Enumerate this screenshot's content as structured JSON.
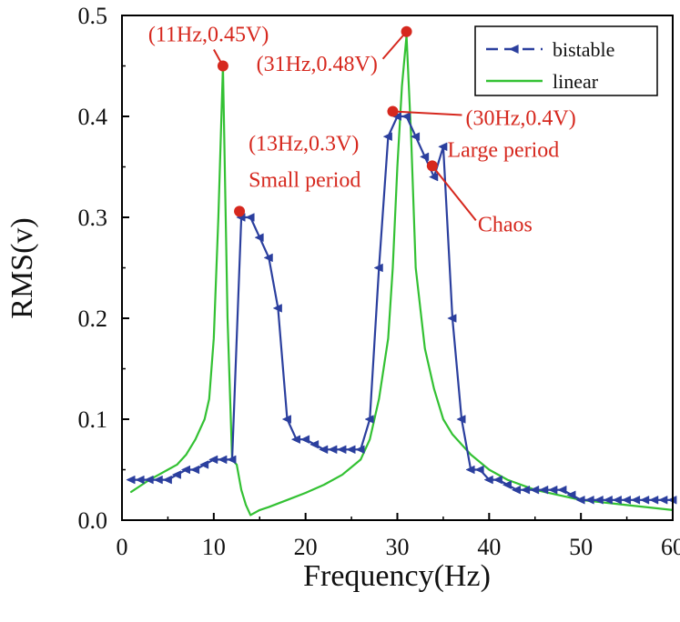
{
  "chart_data": {
    "type": "line",
    "title": "",
    "xlabel": "Frequency(Hz)",
    "ylabel": "RMS(v)",
    "xlim": [
      0,
      60
    ],
    "ylim": [
      0,
      0.5
    ],
    "xticks": [
      0,
      10,
      20,
      30,
      40,
      50,
      60
    ],
    "yticks": [
      0.0,
      0.1,
      0.2,
      0.3,
      0.4,
      0.5
    ],
    "xtick_labels": [
      "0",
      "10",
      "20",
      "30",
      "40",
      "50",
      "60"
    ],
    "ytick_labels": [
      "0.0",
      "0.1",
      "0.2",
      "0.3",
      "0.4",
      "0.5"
    ],
    "legend": {
      "position": "top-right",
      "entries": [
        {
          "label": "bistable",
          "series": "bistable"
        },
        {
          "label": "linear",
          "series": "linear"
        }
      ]
    },
    "series": [
      {
        "name": "bistable",
        "color": "#2b3f9e",
        "marker": "left-triangle",
        "x": [
          1,
          2,
          3,
          4,
          5,
          6,
          7,
          8,
          9,
          10,
          11,
          12,
          13,
          14,
          15,
          16,
          17,
          18,
          19,
          20,
          21,
          22,
          23,
          24,
          25,
          26,
          27,
          28,
          29,
          30,
          31,
          32,
          33,
          34,
          35,
          36,
          37,
          38,
          39,
          40,
          41,
          42,
          43,
          44,
          45,
          46,
          47,
          48,
          49,
          50,
          51,
          52,
          53,
          54,
          55,
          56,
          57,
          58,
          59,
          60
        ],
        "y": [
          0.04,
          0.04,
          0.04,
          0.04,
          0.04,
          0.045,
          0.05,
          0.05,
          0.055,
          0.06,
          0.06,
          0.06,
          0.3,
          0.3,
          0.28,
          0.26,
          0.21,
          0.1,
          0.08,
          0.08,
          0.075,
          0.07,
          0.07,
          0.07,
          0.07,
          0.07,
          0.1,
          0.25,
          0.38,
          0.4,
          0.4,
          0.38,
          0.36,
          0.34,
          0.37,
          0.2,
          0.1,
          0.05,
          0.05,
          0.04,
          0.04,
          0.035,
          0.03,
          0.03,
          0.03,
          0.03,
          0.03,
          0.03,
          0.025,
          0.02,
          0.02,
          0.02,
          0.02,
          0.02,
          0.02,
          0.02,
          0.02,
          0.02,
          0.02,
          0.02
        ]
      },
      {
        "name": "linear",
        "color": "#33c133",
        "marker": "none",
        "x": [
          1,
          2,
          3,
          4,
          5,
          6,
          7,
          8,
          9,
          9.5,
          10,
          10.5,
          11,
          11.5,
          12,
          12.5,
          13,
          13.5,
          14,
          15,
          16,
          18,
          20,
          22,
          24,
          26,
          27,
          28,
          29,
          29.5,
          30,
          30.5,
          31,
          31.5,
          32,
          33,
          34,
          35,
          36,
          38,
          40,
          42,
          45,
          50,
          55,
          60
        ],
        "y": [
          0.028,
          0.034,
          0.04,
          0.045,
          0.05,
          0.055,
          0.065,
          0.08,
          0.1,
          0.12,
          0.18,
          0.3,
          0.45,
          0.2,
          0.06,
          0.055,
          0.03,
          0.015,
          0.005,
          0.01,
          0.013,
          0.02,
          0.027,
          0.035,
          0.045,
          0.06,
          0.08,
          0.12,
          0.18,
          0.25,
          0.35,
          0.43,
          0.48,
          0.38,
          0.25,
          0.17,
          0.13,
          0.1,
          0.085,
          0.065,
          0.05,
          0.04,
          0.03,
          0.02,
          0.015,
          0.01
        ]
      }
    ],
    "annotations": [
      {
        "text": "(11Hz,0.45V)",
        "x": 11,
        "y": 0.45,
        "color": "#d6281e",
        "label_side": "upper-left"
      },
      {
        "text": "(31Hz,0.48V)",
        "x": 31,
        "y": 0.484,
        "color": "#d6281e",
        "label_side": "lower-left"
      },
      {
        "text": "(13Hz,0.3V)",
        "x": 12.8,
        "y": 0.306,
        "color": "#d6281e",
        "label_side": "upper-right"
      },
      {
        "text": "Small period",
        "x": 12.8,
        "y": 0.306,
        "color": "#d6281e",
        "label_side": "right"
      },
      {
        "text": "(30Hz,0.4V)",
        "x": 29.5,
        "y": 0.405,
        "color": "#d6281e",
        "label_side": "lower-right"
      },
      {
        "text": "Large period",
        "x": 29.5,
        "y": 0.405,
        "color": "#d6281e",
        "label_side": "right"
      },
      {
        "text": "Chaos",
        "x": 33.8,
        "y": 0.351,
        "color": "#d6281e",
        "label_side": "lower-right"
      }
    ],
    "grid": false
  }
}
